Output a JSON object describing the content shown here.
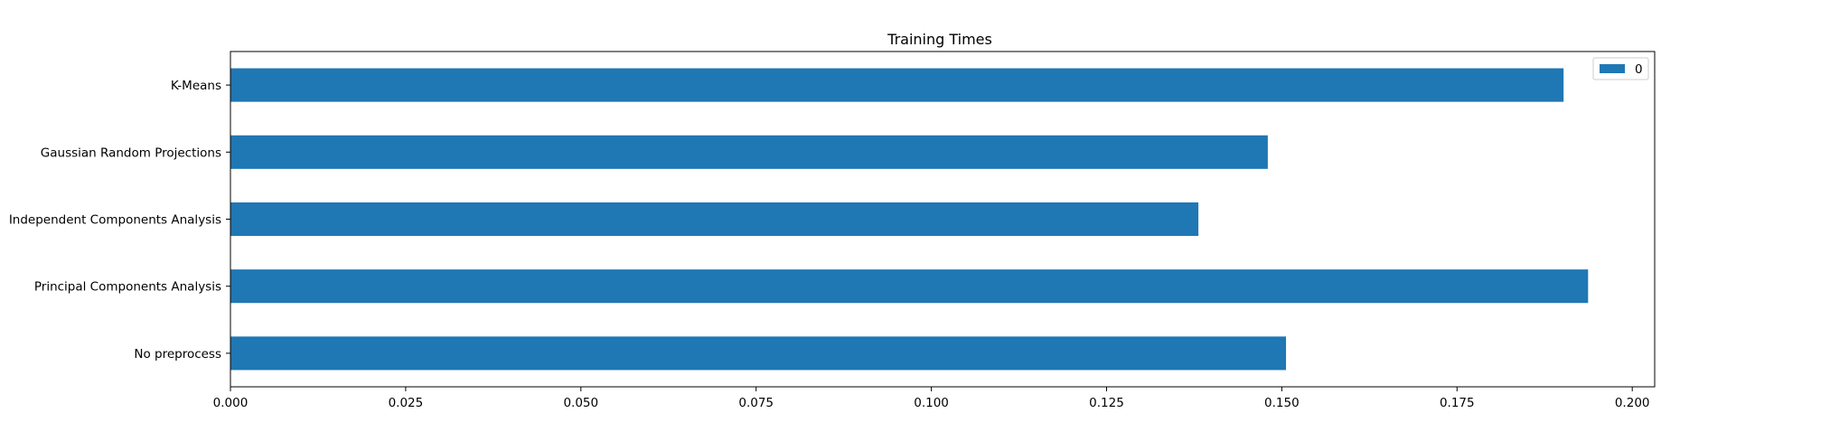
{
  "chart_data": {
    "type": "bar",
    "orientation": "horizontal",
    "title": "Training Times",
    "xlabel": "",
    "ylabel": "",
    "categories": [
      "No preprocess",
      "Principal Components Analysis",
      "Independent Components Analysis",
      "Gaussian Random Projections",
      "K-Means"
    ],
    "series": [
      {
        "name": "0",
        "values": [
          0.1506,
          0.1937,
          0.1381,
          0.148,
          0.1902
        ]
      }
    ],
    "xlim": [
      0,
      0.2032
    ],
    "xticks": [
      "0.000",
      "0.025",
      "0.050",
      "0.075",
      "0.100",
      "0.125",
      "0.150",
      "0.175",
      "0.200"
    ],
    "grid": false,
    "legend": "top-right",
    "colors": {
      "bar": "#1f77b4",
      "axis": "#000000"
    }
  }
}
